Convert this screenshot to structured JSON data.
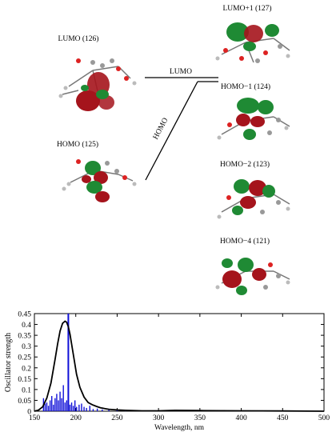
{
  "orbitals": {
    "lumo": "LUMO (126)",
    "homo": "HOMO (125)",
    "lumo1": "LUMO+1 (127)",
    "homo1": "HOMO−1 (124)",
    "homo2": "HOMO−2 (123)",
    "homo4": "HOMO−4 (121)"
  },
  "level_labels": {
    "lumo": "LUMO",
    "homo": "HOMO"
  },
  "colors": {
    "positive_lobe": "#1f8a34",
    "negative_lobe": "#a5141c",
    "spectrum_curve": "#000000",
    "stick_color": "#1010d8"
  },
  "chart_data": {
    "type": "line",
    "xlabel": "Wavelength, nm",
    "ylabel": "Oscillator strength",
    "xlim": [
      150,
      500
    ],
    "ylim": [
      0,
      0.45
    ],
    "xticks": [
      150,
      200,
      250,
      300,
      350,
      400,
      450,
      500
    ],
    "yticks": [
      0,
      0.05,
      0.1,
      0.15,
      0.2,
      0.25,
      0.3,
      0.35,
      0.4,
      0.45
    ],
    "envelope": {
      "x": [
        150,
        155,
        160,
        165,
        170,
        175,
        178,
        181,
        184,
        187,
        189,
        191,
        193,
        195,
        198,
        201,
        205,
        210,
        215,
        220,
        225,
        230,
        235,
        240,
        250,
        260,
        280,
        300,
        320,
        350,
        400,
        450,
        500
      ],
      "y": [
        0.0,
        0.005,
        0.02,
        0.06,
        0.13,
        0.24,
        0.31,
        0.37,
        0.405,
        0.415,
        0.41,
        0.39,
        0.355,
        0.31,
        0.24,
        0.17,
        0.11,
        0.065,
        0.04,
        0.03,
        0.022,
        0.016,
        0.012,
        0.009,
        0.006,
        0.004,
        0.002,
        0.002,
        0.004,
        0.003,
        0.002,
        0.001,
        0.0
      ]
    },
    "sticks": {
      "x": [
        161,
        163,
        165,
        167,
        169,
        171,
        173,
        175,
        177,
        179,
        181,
        183,
        185,
        187,
        189,
        191,
        193,
        195,
        197,
        199,
        201,
        204,
        207,
        210,
        213,
        217,
        221,
        226,
        232,
        240,
        250,
        260,
        275,
        295
      ],
      "y": [
        0.06,
        0.035,
        0.04,
        0.025,
        0.05,
        0.07,
        0.03,
        0.06,
        0.08,
        0.05,
        0.09,
        0.06,
        0.12,
        0.04,
        0.05,
        0.45,
        0.03,
        0.04,
        0.025,
        0.05,
        0.02,
        0.03,
        0.035,
        0.02,
        0.015,
        0.025,
        0.01,
        0.012,
        0.008,
        0.006,
        0.005,
        0.004,
        0.003,
        0.003
      ]
    }
  }
}
